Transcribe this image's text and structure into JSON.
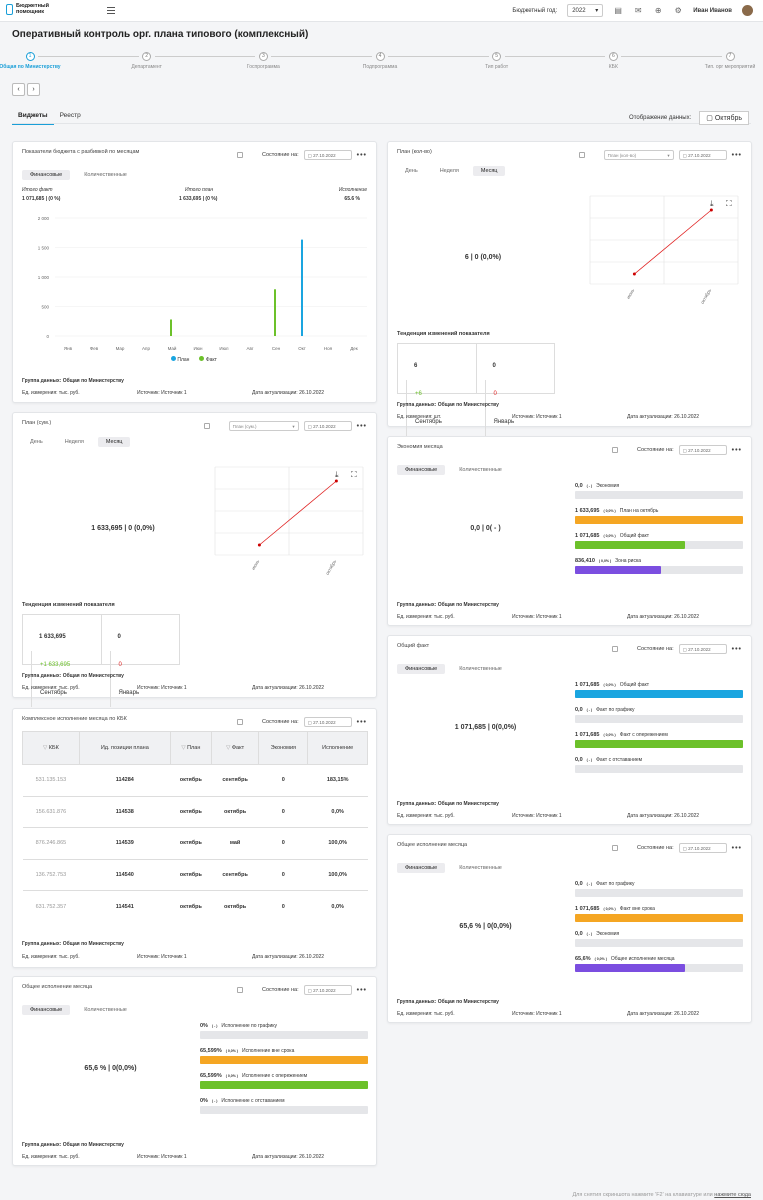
{
  "app": {
    "logo_line1": "Бюджетный",
    "logo_line2": "помощник",
    "year_label": "Бюджетный год:",
    "year": "2022",
    "user": "Иван Иванов"
  },
  "page_title": "Оперативный контроль орг. плана типового (комплексный)",
  "steps": [
    {
      "n": "1",
      "label": "Общая по Министерству"
    },
    {
      "n": "2",
      "label": "Департамент"
    },
    {
      "n": "3",
      "label": "Госпрограмма"
    },
    {
      "n": "4",
      "label": "Подпрограмма"
    },
    {
      "n": "5",
      "label": "Тип работ"
    },
    {
      "n": "6",
      "label": "КБК"
    },
    {
      "n": "7",
      "label": "Тип. орг мероприятий"
    }
  ],
  "nav": {
    "prev": "‹",
    "next": "›"
  },
  "tabs": [
    "Виджеты",
    "Реестр"
  ],
  "display": {
    "label": "Отображение данных:",
    "value": "Октябрь"
  },
  "common": {
    "status": "Состояние на:",
    "date": "27.10.2022",
    "more": "•••",
    "group": "Группа данных: Общая по Министерству",
    "unit_rub": "Ед. измерения: тыс. руб.",
    "unit_sht": "Ед. измерения: шт.",
    "source": "Источник: Источник 1",
    "actual": "Дата актуализации: 26.10.2022",
    "fin": "Финансовые",
    "qty": "Количественные",
    "day": "День",
    "week": "Неделя",
    "month": "Месяц",
    "trend": "Тенденция изменений показателя"
  },
  "w1": {
    "title": "Показатели бюджета с разбивкой по месяцам",
    "f_lab": "Итого факт",
    "f_val": "1 071,685 | (0 %)",
    "p_lab": "Итого план",
    "p_val": "1 633,695 | (0 %)",
    "e_lab": "Исполнение",
    "e_val": "65.6 %",
    "legend_plan": "План",
    "legend_fact": "Факт"
  },
  "chart_data": [
    {
      "type": "bar",
      "categories": [
        "Янв",
        "Фев",
        "Мар",
        "Апр",
        "Май",
        "Июн",
        "Июл",
        "Авг",
        "Сен",
        "Окт",
        "Ноя",
        "Дек"
      ],
      "series": [
        {
          "name": "План",
          "values": [
            0,
            0,
            0,
            0,
            0,
            0,
            0,
            0,
            0,
            1633.695,
            0,
            0
          ]
        },
        {
          "name": "Факт",
          "values": [
            0,
            0,
            0,
            0,
            280,
            0,
            0,
            0,
            791.685,
            0,
            0,
            0
          ]
        }
      ],
      "yticks": [
        "0",
        "500",
        "1 000",
        "1 500",
        "2 000"
      ],
      "ylim": [
        0,
        2000
      ],
      "colors": {
        "План": "#1aa5e0",
        "Факт": "#6cc12a"
      }
    },
    {
      "type": "line",
      "x": [
        "июнь",
        "октябрь"
      ],
      "series": [
        {
          "values": [
            0,
            6
          ]
        }
      ],
      "color": "#e02020"
    },
    {
      "type": "line",
      "x": [
        "июнь",
        "октябрь"
      ],
      "series": [
        {
          "values": [
            0,
            1633.695
          ]
        }
      ],
      "color": "#e02020"
    }
  ],
  "w2": {
    "title": "План (кол-во)",
    "select": "План (кол-во)",
    "kpi": "6  |  0  (0,0%)",
    "t_now": "6",
    "t_delta": "+6",
    "t_month": "Сентябрь",
    "t_prev": "0",
    "t_prev_delta": "0",
    "t_prev_month": "Январь",
    "x1": "июнь",
    "x2": "октябрь"
  },
  "w3": {
    "title": "План (сум.)",
    "select": "План (сум.)",
    "kpi": "1 633,695  |  0  (0,0%)",
    "t_now": "1 633,695",
    "t_delta": "+1 633,695",
    "t_month": "Сентябрь",
    "t_prev": "0",
    "t_prev_delta": "0",
    "t_prev_month": "Январь",
    "x1": "июнь",
    "x2": "октябрь"
  },
  "w4": {
    "title": "Экономия месяца",
    "kpi": "0,0  |  0( - )",
    "rows": [
      {
        "v": "0,0",
        "s": "( - )",
        "l": "Экономия",
        "p": 0,
        "c": "#e5e6e9"
      },
      {
        "v": "1 633,695",
        "s": "( 0,0% )",
        "l": "План на октябрь",
        "p": 100,
        "c": "#f5a623"
      },
      {
        "v": "1 071,685",
        "s": "( 0,0% )",
        "l": "Общий факт",
        "p": 65.6,
        "c": "#6cc12a"
      },
      {
        "v": "836,410",
        "s": "( 0,0% )",
        "l": "Зона риска",
        "p": 51.2,
        "c": "#7b4ee0"
      }
    ]
  },
  "w5": {
    "title": "Общий факт",
    "kpi": "1 071,685  |  0(0,0%)",
    "rows": [
      {
        "v": "1 071,685",
        "s": "( 0,0% )",
        "l": "Общий факт",
        "p": 100,
        "c": "#1aa5e0"
      },
      {
        "v": "0,0",
        "s": "( - )",
        "l": "Факт по графику",
        "p": 0,
        "c": "#e5e6e9"
      },
      {
        "v": "1 071,685",
        "s": "( 0,0% )",
        "l": "Факт с опережением",
        "p": 100,
        "c": "#6cc12a"
      },
      {
        "v": "0,0",
        "s": "( - )",
        "l": "Факт с отставанием",
        "p": 0,
        "c": "#e5e6e9"
      }
    ]
  },
  "w6": {
    "title": "Комплексное исполнение месяца по КБК",
    "headers": [
      "КБК",
      "Ид. позиции плана",
      "План",
      "Факт",
      "Экономия",
      "Исполнение"
    ],
    "rows": [
      [
        "531.135.153",
        "114284",
        "октябрь",
        "сентябрь",
        "0",
        "183,15%"
      ],
      [
        "156.631.876",
        "114538",
        "октябрь",
        "октябрь",
        "0",
        "0,0%"
      ],
      [
        "876.246.865",
        "114539",
        "октябрь",
        "май",
        "0",
        "100,0%"
      ],
      [
        "136.752.753",
        "114540",
        "октябрь",
        "сентябрь",
        "0",
        "100,0%"
      ],
      [
        "631.752.357",
        "114541",
        "октябрь",
        "октябрь",
        "0",
        "0,0%"
      ]
    ]
  },
  "w7": {
    "title": "Общее исполнение месяца",
    "kpi": "65,6 %  |  0(0,0%)",
    "rows": [
      {
        "v": "0,0",
        "s": "( - )",
        "l": "Факт по графику",
        "p": 0,
        "c": "#e5e6e9"
      },
      {
        "v": "1 071,685",
        "s": "( 0,0% )",
        "l": "Факт вне срока",
        "p": 100,
        "c": "#f5a623"
      },
      {
        "v": "0,0",
        "s": "( - )",
        "l": "Экономия",
        "p": 0,
        "c": "#e5e6e9"
      },
      {
        "v": "65,6%",
        "s": "( 0,0% )",
        "l": "Общее исполнение месяца",
        "p": 65.6,
        "c": "#7b4ee0"
      }
    ]
  },
  "w8": {
    "title": "Общее исполнение месяца",
    "kpi": "65,6 %  |  0(0,0%)",
    "rows": [
      {
        "v": "0%",
        "s": "( - )",
        "l": "Исполнение по графику",
        "p": 0,
        "c": "#e5e6e9"
      },
      {
        "v": "65,599%",
        "s": "( 0,0% )",
        "l": "Исполнение вне срока",
        "p": 100,
        "c": "#f5a623"
      },
      {
        "v": "65,599%",
        "s": "( 0,0% )",
        "l": "Исполнение с опережением",
        "p": 100,
        "c": "#6cc12a"
      },
      {
        "v": "0%",
        "s": "( - )",
        "l": "Исполнение с отставанием",
        "p": 0,
        "c": "#e5e6e9"
      }
    ]
  },
  "footer": {
    "text": "Для снятия скриншота нажмите 'F2' на клавиатуре или",
    "link": "нажмите сюда"
  }
}
